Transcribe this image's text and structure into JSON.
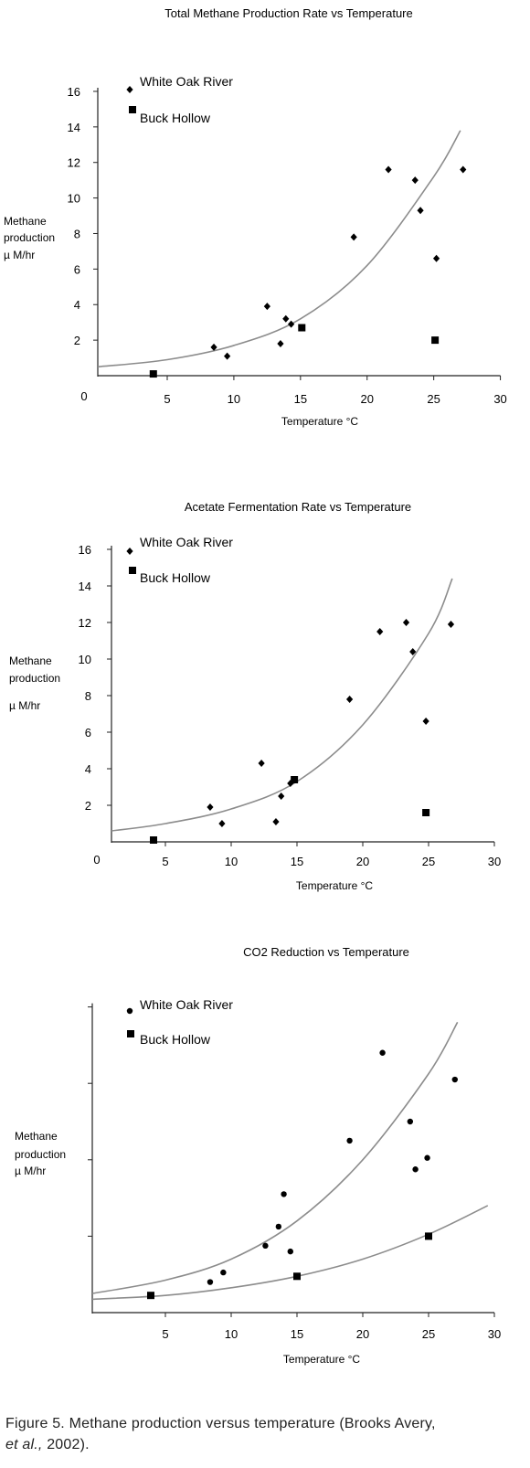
{
  "chart_data": [
    {
      "type": "scatter",
      "title": "Total Methane Production Rate vs Temperature",
      "xlabel": "Temperature °C",
      "ylabel": [
        "Methane",
        "production",
        "µ M/hr"
      ],
      "xlim": [
        0,
        30
      ],
      "ylim": [
        0,
        16
      ],
      "x_ticks": [
        5,
        10,
        15,
        20,
        25,
        30
      ],
      "y_ticks": [
        2,
        4,
        6,
        8,
        10,
        12,
        14,
        16
      ],
      "origin_label": "0",
      "legend_placement": "top-left",
      "grid": false,
      "series": [
        {
          "name": "White Oak River",
          "marker": "diamond",
          "points": [
            [
              8.5,
              1.6
            ],
            [
              9.5,
              1.1
            ],
            [
              12.5,
              3.9
            ],
            [
              13.5,
              1.8
            ],
            [
              13.9,
              3.2
            ],
            [
              14.3,
              2.9
            ],
            [
              19.0,
              7.8
            ],
            [
              21.6,
              11.6
            ],
            [
              23.6,
              11.0
            ],
            [
              24.0,
              9.3
            ],
            [
              25.2,
              6.6
            ],
            [
              27.2,
              11.6
            ]
          ]
        },
        {
          "name": "Buck Hollow",
          "marker": "square",
          "points": [
            [
              4.0,
              0.1
            ],
            [
              15.1,
              2.7
            ],
            [
              25.1,
              2.0
            ]
          ]
        }
      ],
      "fit_curves": [
        {
          "for": "all",
          "points": [
            [
              0,
              0.5
            ],
            [
              5,
              0.9
            ],
            [
              10,
              1.7
            ],
            [
              15,
              3.2
            ],
            [
              20,
              6.2
            ],
            [
              25,
              11.2
            ],
            [
              27,
              13.8
            ]
          ]
        }
      ],
      "colors": {
        "markers": "#000000",
        "curve": "#8c8c8c"
      }
    },
    {
      "type": "scatter",
      "title": "Acetate Fermentation Rate vs Temperature",
      "xlabel": "Temperature °C",
      "ylabel": [
        "Methane",
        "production",
        "µ M/hr"
      ],
      "xlim": [
        0,
        30
      ],
      "ylim": [
        0,
        16
      ],
      "x_ticks": [
        5,
        10,
        15,
        20,
        25,
        30
      ],
      "y_ticks": [
        2,
        4,
        6,
        8,
        10,
        12,
        14,
        16
      ],
      "origin_label": "0",
      "legend_placement": "top-left",
      "grid": false,
      "series": [
        {
          "name": "White Oak River",
          "marker": "diamond",
          "points": [
            [
              8.4,
              1.9
            ],
            [
              9.3,
              1.0
            ],
            [
              12.3,
              4.3
            ],
            [
              13.4,
              1.1
            ],
            [
              13.8,
              2.5
            ],
            [
              14.5,
              3.2
            ],
            [
              19.0,
              7.8
            ],
            [
              21.3,
              11.5
            ],
            [
              23.3,
              12.0
            ],
            [
              23.8,
              10.4
            ],
            [
              24.8,
              6.6
            ],
            [
              26.7,
              11.9
            ]
          ]
        },
        {
          "name": "Buck Hollow",
          "marker": "square",
          "points": [
            [
              3.9,
              0.1
            ],
            [
              14.8,
              3.4
            ],
            [
              24.8,
              1.6
            ]
          ]
        }
      ],
      "fit_curves": [
        {
          "for": "all",
          "points": [
            [
              0,
              0.6
            ],
            [
              5,
              1.0
            ],
            [
              10,
              1.8
            ],
            [
              15,
              3.3
            ],
            [
              20,
              6.4
            ],
            [
              25,
              11.4
            ],
            [
              26.8,
              14.4
            ]
          ]
        }
      ],
      "colors": {
        "markers": "#000000",
        "curve": "#8c8c8c"
      }
    },
    {
      "type": "scatter",
      "title": "CO2 Reduction vs Temperature",
      "xlabel": "Temperature °C",
      "ylabel": [
        "Methane",
        "production",
        "µ M/hr"
      ],
      "xlim": [
        0,
        30
      ],
      "ylim": [
        0,
        16
      ],
      "x_ticks": [
        5,
        10,
        15,
        20,
        25,
        30
      ],
      "y_ticks": [
        4,
        8,
        12,
        16
      ],
      "y_tick_labels_shown": false,
      "legend_placement": "top-left",
      "grid": false,
      "series": [
        {
          "name": "White Oak River",
          "marker": "circle",
          "points": [
            [
              8.4,
              1.6
            ],
            [
              9.4,
              2.1
            ],
            [
              12.6,
              3.5
            ],
            [
              13.6,
              4.5
            ],
            [
              14.0,
              6.2
            ],
            [
              14.5,
              3.2
            ],
            [
              19.0,
              9.0
            ],
            [
              21.5,
              13.6
            ],
            [
              23.6,
              10.0
            ],
            [
              24.0,
              7.5
            ],
            [
              24.9,
              8.1
            ],
            [
              27.0,
              12.2
            ]
          ]
        },
        {
          "name": "Buck Hollow",
          "marker": "square",
          "points": [
            [
              4.0,
              0.9
            ],
            [
              15.0,
              1.9
            ],
            [
              25.0,
              4.0
            ]
          ]
        }
      ],
      "fit_curves": [
        {
          "for": "White Oak River",
          "points": [
            [
              0,
              1.0
            ],
            [
              5,
              1.7
            ],
            [
              10,
              2.8
            ],
            [
              15,
              4.8
            ],
            [
              20,
              8.0
            ],
            [
              25,
              12.5
            ],
            [
              27.2,
              15.2
            ]
          ]
        },
        {
          "for": "Buck Hollow",
          "points": [
            [
              0,
              0.7
            ],
            [
              5,
              0.9
            ],
            [
              10,
              1.3
            ],
            [
              15,
              1.9
            ],
            [
              20,
              2.8
            ],
            [
              25,
              4.1
            ],
            [
              29.5,
              5.6
            ]
          ]
        }
      ],
      "colors": {
        "markers": "#000000",
        "curve": "#8c8c8c"
      }
    }
  ],
  "caption": {
    "main": "Figure 5. Methane production versus temperature (Brooks Avery,",
    "authors": "et al.,",
    "year": " 2002)."
  }
}
